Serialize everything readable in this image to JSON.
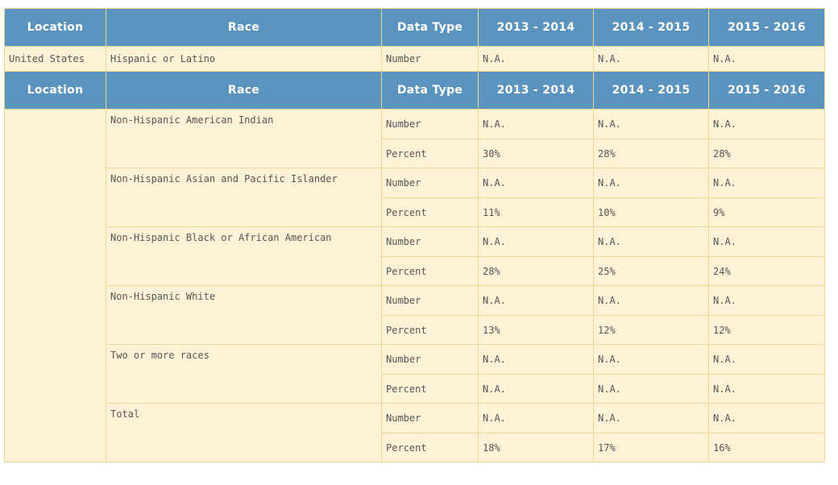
{
  "headers": {
    "location": "Location",
    "race": "Race",
    "data_type": "Data Type",
    "y1": "2013 - 2014",
    "y2": "2014 - 2015",
    "y3": "2015 - 2016"
  },
  "first_row": {
    "location": "United States",
    "race": "Hispanic or Latino",
    "type": "Number",
    "v1": "N.A.",
    "v2": "N.A.",
    "v3": "N.A."
  },
  "groups": [
    {
      "race": "Non-Hispanic American Indian",
      "rows": [
        {
          "type": "Number",
          "v1": "N.A.",
          "v2": "N.A.",
          "v3": "N.A."
        },
        {
          "type": "Percent",
          "v1": "30%",
          "v2": "28%",
          "v3": "28%"
        }
      ]
    },
    {
      "race": "Non-Hispanic Asian and Pacific Islander",
      "rows": [
        {
          "type": "Number",
          "v1": "N.A.",
          "v2": "N.A.",
          "v3": "N.A."
        },
        {
          "type": "Percent",
          "v1": "11%",
          "v2": "10%",
          "v3": "9%"
        }
      ]
    },
    {
      "race": "Non-Hispanic Black or African American",
      "rows": [
        {
          "type": "Number",
          "v1": "N.A.",
          "v2": "N.A.",
          "v3": "N.A."
        },
        {
          "type": "Percent",
          "v1": "28%",
          "v2": "25%",
          "v3": "24%"
        }
      ]
    },
    {
      "race": "Non-Hispanic White",
      "rows": [
        {
          "type": "Number",
          "v1": "N.A.",
          "v2": "N.A.",
          "v3": "N.A."
        },
        {
          "type": "Percent",
          "v1": "13%",
          "v2": "12%",
          "v3": "12%"
        }
      ]
    },
    {
      "race": "Two or more races",
      "rows": [
        {
          "type": "Number",
          "v1": "N.A.",
          "v2": "N.A.",
          "v3": "N.A."
        },
        {
          "type": "Percent",
          "v1": "N.A.",
          "v2": "N.A.",
          "v3": "N.A."
        }
      ]
    },
    {
      "race": "Total",
      "rows": [
        {
          "type": "Number",
          "v1": "N.A.",
          "v2": "N.A.",
          "v3": "N.A."
        },
        {
          "type": "Percent",
          "v1": "18%",
          "v2": "17%",
          "v3": "16%"
        }
      ]
    }
  ]
}
